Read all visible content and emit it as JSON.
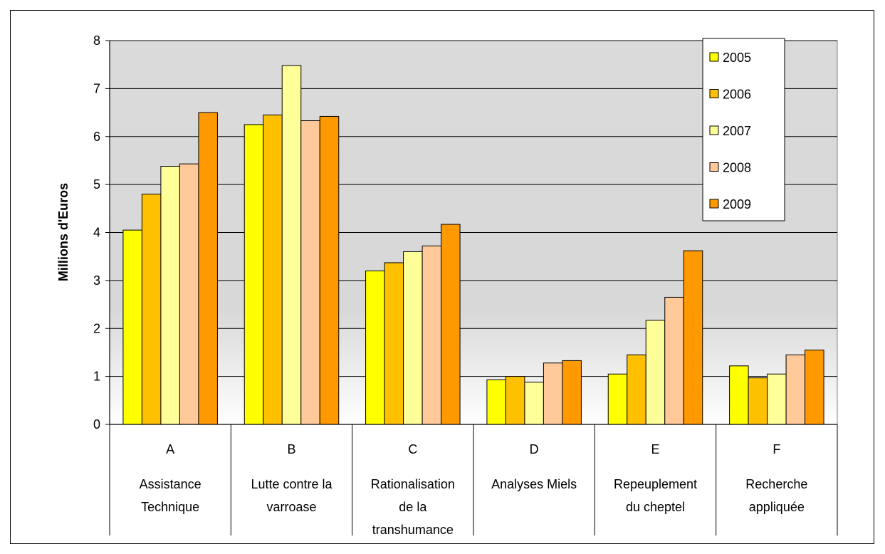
{
  "chart_data": {
    "type": "bar",
    "title": "",
    "xlabel": "",
    "ylabel": "Millions d'Euros",
    "ylim": [
      0,
      8
    ],
    "yticks": [
      "0",
      "1",
      "2",
      "3",
      "4",
      "5",
      "6",
      "7",
      "8"
    ],
    "grid": true,
    "legend_position": "top-right",
    "categories": [
      {
        "letter": "A",
        "label": [
          "Assistance",
          "Technique"
        ]
      },
      {
        "letter": "B",
        "label": [
          "Lutte contre la",
          "varroase"
        ]
      },
      {
        "letter": "C",
        "label": [
          "Rationalisation",
          "de la",
          "transhumance"
        ]
      },
      {
        "letter": "D",
        "label": [
          "Analyses Miels"
        ]
      },
      {
        "letter": "E",
        "label": [
          "Repeuplement",
          "du cheptel"
        ]
      },
      {
        "letter": "F",
        "label": [
          "Recherche",
          "appliquée"
        ]
      }
    ],
    "series": [
      {
        "name": "2005",
        "color": "#FFFF00",
        "values": [
          4.05,
          6.25,
          3.2,
          0.93,
          1.05,
          1.22
        ]
      },
      {
        "name": "2006",
        "color": "#FFC000",
        "values": [
          4.8,
          6.45,
          3.37,
          1.0,
          1.45,
          0.97
        ]
      },
      {
        "name": "2007",
        "color": "#FFFF99",
        "values": [
          5.38,
          7.48,
          3.6,
          0.88,
          2.17,
          1.05
        ]
      },
      {
        "name": "2008",
        "color": "#FFC999",
        "values": [
          5.43,
          6.33,
          3.72,
          1.28,
          2.65,
          1.45
        ]
      },
      {
        "name": "2009",
        "color": "#FF9900",
        "values": [
          6.5,
          6.42,
          4.17,
          1.33,
          3.62,
          1.55
        ]
      }
    ]
  }
}
